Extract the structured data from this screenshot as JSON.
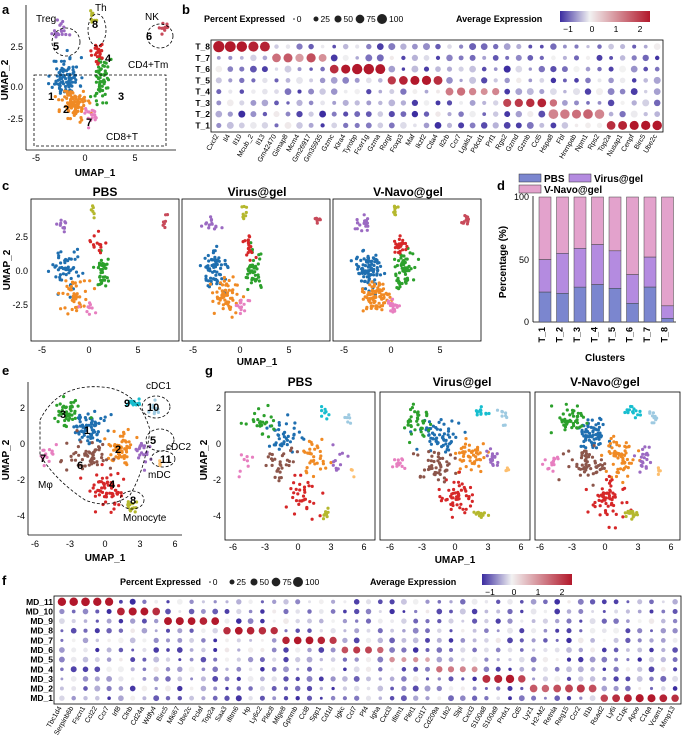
{
  "colors": {
    "T_cells": {
      "1": "#1f6fb0",
      "2": "#f08a24",
      "3": "#2ca02c",
      "4": "#d62728",
      "5": "#9b6ac2",
      "6": "#c84a5a",
      "7": "#e77fc0",
      "8": "#b5b82e"
    },
    "MD_cells": {
      "1": "#1f6fb0",
      "2": "#f08a24",
      "3": "#2ca02c",
      "4": "#d62728",
      "5": "#9b6ac2",
      "6": "#8c564b",
      "7": "#e77fc0",
      "8": "#b5b82e",
      "9": "#17becf",
      "10": "#9ecae1",
      "11": "#fdbf6f"
    },
    "bar_pbs": "#7b86cf",
    "bar_virus": "#b48be0",
    "bar_vnavo": "#e3a2cc",
    "expr_low": "#3b2ca0",
    "expr_mid": "#f2f2f2",
    "expr_high": "#b2182b"
  },
  "panel_a": {
    "letter": "a",
    "xlabel": "UMAP_1",
    "ylabel": "UMAP_2",
    "xticks": [
      "-5",
      "0",
      "5"
    ],
    "yticks": [
      "2.5",
      "0.0",
      "-2.5"
    ],
    "annotations": {
      "treg": "Treg",
      "th": "Th",
      "nk": "NK",
      "cd4tm": "CD4+Tm",
      "cd8t": "CD8+T"
    },
    "cluster_labels": [
      "1",
      "2",
      "3",
      "4",
      "5",
      "6",
      "7",
      "8"
    ]
  },
  "panel_b": {
    "letter": "b",
    "legend_pct_title": "Percent Expressed",
    "legend_pct_values": [
      "0",
      "25",
      "50",
      "75",
      "100"
    ],
    "legend_expr_title": "Average Expression",
    "legend_expr_ticks": [
      "−1",
      "0",
      "1",
      "2"
    ]
  },
  "panel_c": {
    "letter": "c",
    "titles": [
      "PBS",
      "Virus@gel",
      "V-Navo@gel"
    ],
    "xlabel": "UMAP_1",
    "ylabel": "UMAP_2",
    "xticks": [
      "-5",
      "0",
      "5"
    ],
    "yticks": [
      "2.5",
      "0.0",
      "-2.5"
    ]
  },
  "panel_d": {
    "letter": "d",
    "legend": [
      "PBS",
      "Virus@gel",
      "V-Navo@gel"
    ],
    "ylabel": "Percentage (%)",
    "xlabel": "Clusters",
    "yticks": [
      "0",
      "50",
      "100"
    ]
  },
  "panel_e": {
    "letter": "e",
    "xlabel": "UMAP_1",
    "ylabel": "UMAP_2",
    "xticks": [
      "-6",
      "-3",
      "0",
      "3",
      "6"
    ],
    "yticks": [
      "2",
      "0",
      "-2",
      "-4"
    ],
    "annotations": {
      "cdc1": "cDC1",
      "cdc2": "cDC2",
      "mdc": "mDC",
      "mphi": "Mφ",
      "monocyte": "Monocyte"
    },
    "cluster_labels": [
      "1",
      "2",
      "3",
      "4",
      "5",
      "6",
      "7",
      "8",
      "9",
      "10",
      "11"
    ]
  },
  "panel_f": {
    "letter": "f",
    "legend_pct_title": "Percent Expressed",
    "legend_pct_values": [
      "0",
      "25",
      "50",
      "75",
      "100"
    ],
    "legend_expr_title": "Average Expression",
    "legend_expr_ticks": [
      "−1",
      "0",
      "1",
      "2"
    ]
  },
  "panel_g": {
    "letter": "g",
    "titles": [
      "PBS",
      "Virus@gel",
      "V-Navo@gel"
    ],
    "xlabel": "UMAP_1",
    "ylabel": "UMAP_2",
    "xticks": [
      "-6",
      "-3",
      "0",
      "3",
      "6"
    ],
    "yticks": [
      "2",
      "0",
      "-2",
      "-4"
    ]
  },
  "chart_data": [
    {
      "id": "a",
      "type": "scatter",
      "title": "",
      "xlabel": "UMAP_1",
      "ylabel": "UMAP_2",
      "xlim": [
        -6.5,
        9
      ],
      "ylim": [
        -4.5,
        5
      ],
      "clusters": [
        {
          "name": "1",
          "color": "#1f6fb0",
          "cx": -2.5,
          "cy": 0.3,
          "sx": 1.0,
          "sy": 0.9,
          "n": 90
        },
        {
          "name": "2",
          "color": "#f08a24",
          "cx": -1.6,
          "cy": -1.5,
          "sx": 1.0,
          "sy": 0.8,
          "n": 85
        },
        {
          "name": "3",
          "color": "#2ca02c",
          "cx": 1.2,
          "cy": 0.2,
          "sx": 0.6,
          "sy": 1.0,
          "n": 60
        },
        {
          "name": "4",
          "color": "#d62728",
          "cx": 0.8,
          "cy": 1.9,
          "sx": 0.5,
          "sy": 0.5,
          "n": 25
        },
        {
          "name": "5",
          "color": "#9b6ac2",
          "cx": -3.0,
          "cy": 3.3,
          "sx": 0.6,
          "sy": 0.4,
          "n": 18
        },
        {
          "name": "6",
          "color": "#c84a5a",
          "cx": 7.6,
          "cy": 3.6,
          "sx": 0.3,
          "sy": 0.3,
          "n": 12
        },
        {
          "name": "7",
          "color": "#e77fc0",
          "cx": 0.1,
          "cy": -2.2,
          "sx": 0.5,
          "sy": 0.4,
          "n": 18
        },
        {
          "name": "8",
          "color": "#b5b82e",
          "cx": 0.3,
          "cy": 4.2,
          "sx": 0.2,
          "sy": 0.4,
          "n": 10
        }
      ]
    },
    {
      "id": "b",
      "type": "dotplot",
      "title": "",
      "rows": [
        "T_8",
        "T_7",
        "T_6",
        "T_5",
        "T_4",
        "T_3",
        "T_2",
        "T_1"
      ],
      "genes": [
        "Cxcl2",
        "Il4",
        "Il10",
        "Mcub_2",
        "Il13",
        "Gm42470",
        "Gimap8",
        "Mcm4",
        "Gm26917",
        "Gm35935",
        "Gzmc",
        "Klra4",
        "Tyrobp",
        "Fcer1g",
        "Gzma",
        "Rorgt",
        "Foxp3",
        "Maf",
        "Ikzf2",
        "Ctla4",
        "Il2rb",
        "Ccr7",
        "Lgals1",
        "Pdcd1",
        "Prf1",
        "Rgs2",
        "Gzmd",
        "Gzmb",
        "Ccl5",
        "Hspa8",
        "Fbl",
        "Hnrnpab",
        "Npm1",
        "Rps2",
        "Top2a",
        "Nusap1",
        "Cenpf",
        "Birc5",
        "Ube2c"
      ],
      "high_cells": [
        [
          0,
          0,
          92,
          2.3
        ],
        [
          0,
          1,
          85,
          2.1
        ],
        [
          0,
          2,
          80,
          2.0
        ],
        [
          0,
          3,
          75,
          1.9
        ],
        [
          0,
          4,
          72,
          1.9
        ],
        [
          1,
          5,
          55,
          1.2
        ],
        [
          1,
          6,
          60,
          1.4
        ],
        [
          1,
          7,
          50,
          0.8
        ],
        [
          1,
          8,
          62,
          1.5
        ],
        [
          1,
          9,
          45,
          0.9
        ],
        [
          2,
          10,
          55,
          1.8
        ],
        [
          2,
          11,
          60,
          2.0
        ],
        [
          2,
          12,
          78,
          2.2
        ],
        [
          2,
          13,
          80,
          2.3
        ],
        [
          2,
          14,
          72,
          2.1
        ],
        [
          3,
          15,
          50,
          1.7
        ],
        [
          3,
          16,
          55,
          1.9
        ],
        [
          3,
          17,
          60,
          2.0
        ],
        [
          3,
          18,
          62,
          2.1
        ],
        [
          3,
          19,
          58,
          1.8
        ],
        [
          4,
          20,
          45,
          1.1
        ],
        [
          4,
          21,
          50,
          1.2
        ],
        [
          4,
          22,
          40,
          1.0
        ],
        [
          4,
          23,
          35,
          0.9
        ],
        [
          4,
          24,
          38,
          1.0
        ],
        [
          5,
          25,
          48,
          1.6
        ],
        [
          5,
          26,
          50,
          1.7
        ],
        [
          5,
          27,
          52,
          1.8
        ],
        [
          5,
          28,
          56,
          1.9
        ],
        [
          5,
          29,
          40,
          1.2
        ],
        [
          6,
          29,
          70,
          1.0
        ],
        [
          6,
          30,
          65,
          1.1
        ],
        [
          6,
          31,
          60,
          1.2
        ],
        [
          6,
          32,
          68,
          1.3
        ],
        [
          6,
          33,
          66,
          1.0
        ],
        [
          7,
          34,
          55,
          1.8
        ],
        [
          7,
          35,
          58,
          1.9
        ],
        [
          7,
          36,
          60,
          2.0
        ],
        [
          7,
          37,
          62,
          2.1
        ],
        [
          7,
          38,
          65,
          2.2
        ]
      ],
      "legend_pct": [
        0,
        25,
        50,
        75,
        100
      ],
      "legend_expr_range": [
        -1,
        2
      ]
    },
    {
      "id": "c",
      "type": "scatter",
      "facets": [
        "PBS",
        "Virus@gel",
        "V-Navo@gel"
      ],
      "xlabel": "UMAP_1",
      "ylabel": "UMAP_2",
      "xlim": [
        -6,
        9
      ],
      "ylim": [
        -4.5,
        5
      ],
      "facet_density": [
        0.55,
        0.75,
        1.0
      ]
    },
    {
      "id": "d",
      "type": "bar",
      "stacked": true,
      "title": "",
      "xlabel": "Clusters",
      "ylabel": "Percentage (%)",
      "ylim": [
        0,
        100
      ],
      "categories": [
        "T_1",
        "T_2",
        "T_3",
        "T_4",
        "T_5",
        "T_6",
        "T_7",
        "T_8"
      ],
      "series": [
        {
          "name": "PBS",
          "values": [
            24,
            23,
            28,
            30,
            27,
            15,
            28,
            3
          ]
        },
        {
          "name": "Virus@gel",
          "values": [
            26,
            32,
            31,
            32,
            30,
            23,
            24,
            10
          ]
        },
        {
          "name": "V-Navo@gel",
          "values": [
            50,
            45,
            41,
            38,
            43,
            62,
            48,
            87
          ]
        }
      ]
    },
    {
      "id": "e",
      "type": "scatter",
      "xlabel": "UMAP_1",
      "ylabel": "UMAP_2",
      "xlim": [
        -7,
        7
      ],
      "ylim": [
        -5,
        4
      ],
      "clusters": [
        {
          "name": "1",
          "color": "#1f6fb0",
          "cx": -1.5,
          "cy": 1.3,
          "sx": 1.2,
          "sy": 0.7,
          "n": 70
        },
        {
          "name": "2",
          "color": "#f08a24",
          "cx": 1.3,
          "cy": 0.0,
          "sx": 1.0,
          "sy": 0.7,
          "n": 60
        },
        {
          "name": "3",
          "color": "#2ca02c",
          "cx": -3.5,
          "cy": 2.2,
          "sx": 0.9,
          "sy": 0.6,
          "n": 45
        },
        {
          "name": "4",
          "color": "#d62728",
          "cx": 0.2,
          "cy": -2.4,
          "sx": 1.2,
          "sy": 0.9,
          "n": 60
        },
        {
          "name": "5",
          "color": "#9b6ac2",
          "cx": 3.5,
          "cy": -0.1,
          "sx": 0.5,
          "sy": 0.5,
          "n": 20
        },
        {
          "name": "6",
          "color": "#8c564b",
          "cx": -1.8,
          "cy": -0.4,
          "sx": 1.4,
          "sy": 0.7,
          "n": 55
        },
        {
          "name": "7",
          "color": "#e77fc0",
          "cx": -5.3,
          "cy": -0.3,
          "sx": 0.5,
          "sy": 0.4,
          "n": 15
        },
        {
          "name": "8",
          "color": "#b5b82e",
          "cx": 2.3,
          "cy": -3.4,
          "sx": 0.4,
          "sy": 0.25,
          "n": 15
        },
        {
          "name": "9",
          "color": "#17becf",
          "cx": 2.5,
          "cy": 2.8,
          "sx": 0.5,
          "sy": 0.25,
          "n": 15
        },
        {
          "name": "10",
          "color": "#9ecae1",
          "cx": 4.5,
          "cy": 2.5,
          "sx": 0.4,
          "sy": 0.3,
          "n": 10
        },
        {
          "name": "11",
          "color": "#fdbf6f",
          "cx": 4.9,
          "cy": -0.8,
          "sx": 0.15,
          "sy": 0.25,
          "n": 5
        }
      ]
    },
    {
      "id": "f",
      "type": "dotplot",
      "title": "",
      "rows": [
        "MD_11",
        "MD_10",
        "MD_9",
        "MD_8",
        "MD_7",
        "MD_6",
        "MD_5",
        "MD_4",
        "MD_3",
        "MD_2",
        "MD_1"
      ],
      "genes": [
        "Tbc1d4",
        "Serpinb6b",
        "Fscn1",
        "Ccl22",
        "Ccr7",
        "Irf8",
        "Clnb",
        "Cd24a",
        "Wdfy4",
        "Birc5",
        "Mki67",
        "Ube2c",
        "Pclaf",
        "Top2a",
        "Saa3",
        "Ifitm6",
        "Hp",
        "Ly6c2",
        "Plac8",
        "Mfge8",
        "Gpnmb",
        "Ccl8",
        "Spp1",
        "Cd1d",
        "Igkc",
        "Ccl7",
        "Pf4",
        "Igha",
        "Cxcl3",
        "Ifitm1",
        "Plet1",
        "Ccl17",
        "Cd209a",
        "Ltb2",
        "Slpi",
        "Cxcl3",
        "S100a8",
        "S100a9",
        "Prdx1",
        "Cd5",
        "Lyz1",
        "H2-M2",
        "Retnla",
        "Reg15",
        "Ccr2",
        "Il1b",
        "Rsad2",
        "Ly6i",
        "C1qc",
        "Apoe",
        "C1qa",
        "Vcam1",
        "Mmp13"
      ],
      "high_cells": [
        [
          0,
          0,
          70,
          2.2
        ],
        [
          0,
          1,
          72,
          2.2
        ],
        [
          0,
          2,
          75,
          2.3
        ],
        [
          0,
          3,
          70,
          2.2
        ],
        [
          0,
          4,
          68,
          2.1
        ],
        [
          1,
          5,
          60,
          1.9
        ],
        [
          1,
          6,
          65,
          2.0
        ],
        [
          1,
          7,
          62,
          2.0
        ],
        [
          1,
          8,
          58,
          1.8
        ],
        [
          2,
          9,
          62,
          2.0
        ],
        [
          2,
          10,
          64,
          2.1
        ],
        [
          2,
          11,
          60,
          2.0
        ],
        [
          2,
          12,
          58,
          1.9
        ],
        [
          2,
          13,
          60,
          2.0
        ],
        [
          3,
          14,
          55,
          1.8
        ],
        [
          3,
          15,
          60,
          2.0
        ],
        [
          3,
          16,
          58,
          1.9
        ],
        [
          3,
          17,
          56,
          1.8
        ],
        [
          3,
          18,
          54,
          1.8
        ],
        [
          4,
          19,
          55,
          1.9
        ],
        [
          4,
          20,
          58,
          2.0
        ],
        [
          4,
          21,
          60,
          2.0
        ],
        [
          4,
          22,
          56,
          1.9
        ],
        [
          4,
          23,
          52,
          1.7
        ],
        [
          5,
          24,
          45,
          1.5
        ],
        [
          5,
          25,
          50,
          1.7
        ],
        [
          5,
          26,
          48,
          1.6
        ],
        [
          5,
          27,
          40,
          1.3
        ],
        [
          6,
          28,
          30,
          0.9
        ],
        [
          6,
          29,
          25,
          0.8
        ],
        [
          6,
          30,
          28,
          0.9
        ],
        [
          6,
          31,
          22,
          0.7
        ],
        [
          7,
          32,
          40,
          1.2
        ],
        [
          7,
          33,
          38,
          1.1
        ],
        [
          7,
          34,
          36,
          1.0
        ],
        [
          7,
          35,
          34,
          0.9
        ],
        [
          8,
          36,
          62,
          1.8
        ],
        [
          8,
          37,
          65,
          1.9
        ],
        [
          8,
          38,
          70,
          2.0
        ],
        [
          8,
          39,
          55,
          1.6
        ],
        [
          9,
          40,
          58,
          1.4
        ],
        [
          9,
          41,
          55,
          1.3
        ],
        [
          9,
          42,
          60,
          1.5
        ],
        [
          9,
          43,
          62,
          1.6
        ],
        [
          9,
          44,
          64,
          1.7
        ],
        [
          9,
          45,
          60,
          1.5
        ],
        [
          10,
          46,
          55,
          1.6
        ],
        [
          10,
          47,
          60,
          1.8
        ],
        [
          10,
          48,
          62,
          1.9
        ],
        [
          10,
          49,
          65,
          2.0
        ],
        [
          10,
          50,
          64,
          2.0
        ],
        [
          10,
          51,
          60,
          1.9
        ],
        [
          10,
          52,
          55,
          1.8
        ]
      ],
      "legend_pct": [
        0,
        25,
        50,
        75,
        100
      ],
      "legend_expr_range": [
        -1,
        2
      ]
    },
    {
      "id": "g",
      "type": "scatter",
      "facets": [
        "PBS",
        "Virus@gel",
        "V-Navo@gel"
      ],
      "xlabel": "UMAP_1",
      "ylabel": "UMAP_2",
      "xlim": [
        -7,
        7
      ],
      "ylim": [
        -5,
        4
      ],
      "facet_density": [
        0.55,
        0.85,
        1.0
      ]
    }
  ]
}
